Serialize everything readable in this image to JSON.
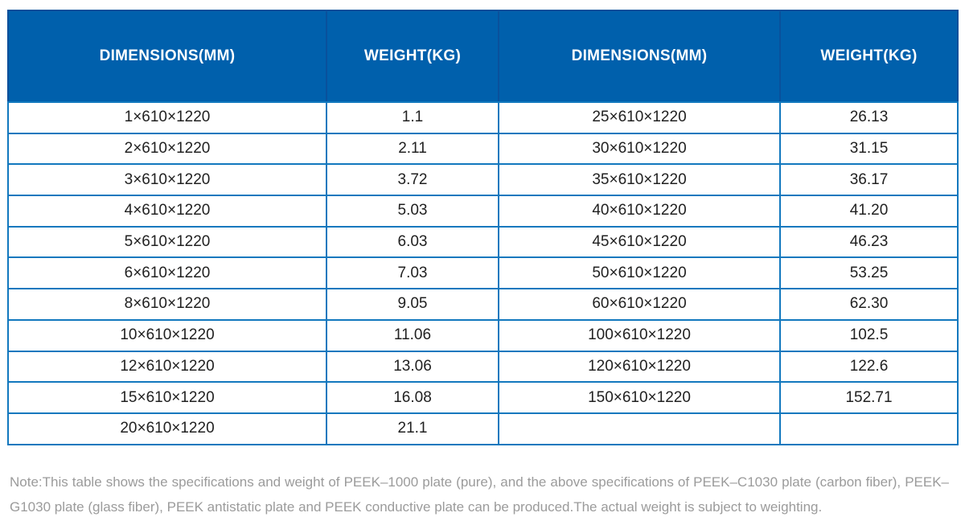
{
  "table": {
    "headers": [
      "DIMENSIONS(MM)",
      "WEIGHT(KG)",
      "DIMENSIONS(MM)",
      "WEIGHT(KG)"
    ],
    "rows": [
      [
        "1×610×1220",
        "1.1",
        "25×610×1220",
        "26.13"
      ],
      [
        "2×610×1220",
        "2.11",
        "30×610×1220",
        "31.15"
      ],
      [
        "3×610×1220",
        "3.72",
        "35×610×1220",
        "36.17"
      ],
      [
        "4×610×1220",
        "5.03",
        "40×610×1220",
        "41.20"
      ],
      [
        "5×610×1220",
        "6.03",
        "45×610×1220",
        "46.23"
      ],
      [
        "6×610×1220",
        "7.03",
        "50×610×1220",
        "53.25"
      ],
      [
        "8×610×1220",
        "9.05",
        "60×610×1220",
        "62.30"
      ],
      [
        "10×610×1220",
        "11.06",
        "100×610×1220",
        "102.5"
      ],
      [
        "12×610×1220",
        "13.06",
        "120×610×1220",
        "122.6"
      ],
      [
        "15×610×1220",
        "16.08",
        "150×610×1220",
        "152.71"
      ],
      [
        "20×610×1220",
        "21.1",
        "",
        ""
      ]
    ]
  },
  "note": {
    "text": "Note:This table shows the specifications and weight of PEEK–1000 plate (pure), and the above specifications of PEEK–C1030 plate (carbon fiber), PEEK–G1030 plate (glass fiber), PEEK antistatic plate and PEEK conductive plate can be produced.The actual weight is subject to weighting."
  },
  "colors": {
    "header_bg": "#0060ac",
    "header_divider": "#09519c",
    "grid_border": "#1278be",
    "header_text": "#ffffff",
    "cell_text": "#212121",
    "note_text": "#9b9b9b"
  }
}
